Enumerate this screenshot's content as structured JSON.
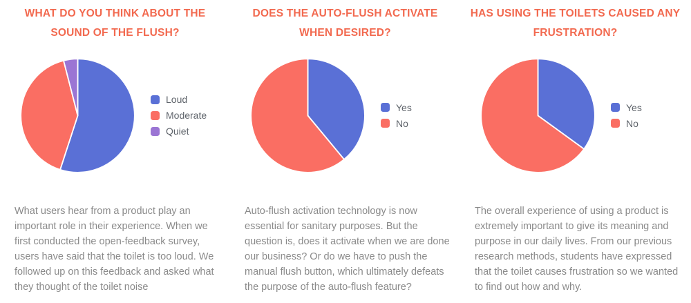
{
  "palette": {
    "title_color": "#F2694F",
    "legend_text_color": "#5F646B",
    "body_text_color": "#8A8A8A",
    "background": "#FFFFFF",
    "slice_separator": "#FFFFFF",
    "blue": "#5A70D6",
    "salmon": "#FA6E63",
    "purple": "#9B75D4"
  },
  "chart_data": [
    {
      "type": "pie",
      "title": "WHAT DO YOU THINK ABOUT THE SOUND OF THE FLUSH?",
      "title_lines": [
        "WHAT DO YOU THINK ABOUT THE",
        "SOUND OF THE FLUSH?"
      ],
      "labels": [
        "Loud",
        "Moderate",
        "Quiet"
      ],
      "values": [
        55,
        41,
        4
      ],
      "unit": "percent",
      "colors": [
        "#5A70D6",
        "#FA6E63",
        "#9B75D4"
      ],
      "start_angle_deg": 0,
      "direction": "clockwise",
      "legend_position": "right",
      "description": "What users hear from a product play an important role in their experience. When we first conducted the open-feedback survey, users have said that the toilet is too loud. We followed up on this feedback and asked what they thought of the toilet noise"
    },
    {
      "type": "pie",
      "title": "DOES THE AUTO-FLUSH ACTIVATE WHEN DESIRED?",
      "title_lines": [
        "DOES THE AUTO-FLUSH ACTIVATE",
        "WHEN DESIRED?"
      ],
      "labels": [
        "Yes",
        "No"
      ],
      "values": [
        39,
        61
      ],
      "unit": "percent",
      "colors": [
        "#5A70D6",
        "#FA6E63"
      ],
      "start_angle_deg": 0,
      "direction": "clockwise",
      "legend_position": "right",
      "description": "Auto-flush activation technology is now essential for sanitary purposes. But the question is, does it activate when we are done our business? Or do we have to push the manual flush button, which ultimately defeats the purpose of the auto-flush feature?"
    },
    {
      "type": "pie",
      "title": "HAS USING THE TOILETS CAUSED ANY FRUSTRATION?",
      "title_lines": [
        "HAS USING THE TOILETS CAUSED ANY",
        "FRUSTRATION?"
      ],
      "labels": [
        "Yes",
        "No"
      ],
      "values": [
        35,
        65
      ],
      "unit": "percent",
      "colors": [
        "#5A70D6",
        "#FA6E63"
      ],
      "start_angle_deg": 0,
      "direction": "clockwise",
      "legend_position": "right",
      "description": "The overall experience of using a product is extremely important to give its meaning and purpose in our daily lives. From our previous research methods, students have expressed that the toilet causes frustration so we wanted to find out how and why."
    }
  ]
}
